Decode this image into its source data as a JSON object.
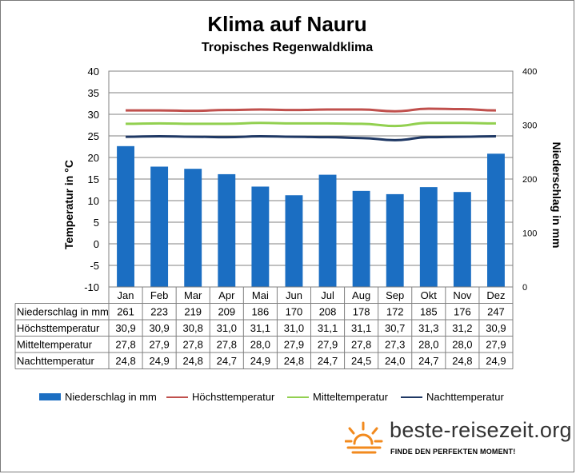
{
  "chart_data": {
    "type": "bar",
    "title": "Klima auf Nauru",
    "subtitle": "Tropisches Regenwaldklima",
    "ylabel_left": "Temperatur in °C",
    "ylabel_right": "Niederschlag in mm",
    "ylim_left": [
      -10,
      40
    ],
    "ylim_right": [
      0,
      400
    ],
    "yticks_left": [
      "-10",
      "-5",
      "0",
      "5",
      "10",
      "15",
      "20",
      "25",
      "30",
      "35",
      "40"
    ],
    "yticks_right": [
      "0",
      "100",
      "200",
      "300",
      "400"
    ],
    "categories": [
      "Jan",
      "Feb",
      "Mar",
      "Apr",
      "Mai",
      "Jun",
      "Jul",
      "Aug",
      "Sep",
      "Okt",
      "Nov",
      "Dez"
    ],
    "series": [
      {
        "name": "Niederschlag in mm",
        "kind": "bar",
        "axis": "right",
        "color": "#1b6ec2",
        "values": [
          261,
          223,
          219,
          209,
          186,
          170,
          208,
          178,
          172,
          185,
          176,
          247
        ],
        "labels": [
          "261",
          "223",
          "219",
          "209",
          "186",
          "170",
          "208",
          "178",
          "172",
          "185",
          "176",
          "247"
        ]
      },
      {
        "name": "Höchsttemperatur",
        "kind": "line",
        "axis": "left",
        "color": "#c0504d",
        "values": [
          30.9,
          30.9,
          30.8,
          31.0,
          31.1,
          31.0,
          31.1,
          31.1,
          30.7,
          31.3,
          31.2,
          30.9
        ],
        "labels": [
          "30,9",
          "30,9",
          "30,8",
          "31,0",
          "31,1",
          "31,0",
          "31,1",
          "31,1",
          "30,7",
          "31,3",
          "31,2",
          "30,9"
        ]
      },
      {
        "name": "Mitteltemperatur",
        "kind": "line",
        "axis": "left",
        "color": "#92d050",
        "values": [
          27.8,
          27.9,
          27.8,
          27.8,
          28.0,
          27.9,
          27.9,
          27.8,
          27.3,
          28.0,
          28.0,
          27.9
        ],
        "labels": [
          "27,8",
          "27,9",
          "27,8",
          "27,8",
          "28,0",
          "27,9",
          "27,9",
          "27,8",
          "27,3",
          "28,0",
          "28,0",
          "27,9"
        ]
      },
      {
        "name": "Nachttemperatur",
        "kind": "line",
        "axis": "left",
        "color": "#1f3864",
        "values": [
          24.8,
          24.9,
          24.8,
          24.7,
          24.9,
          24.8,
          24.7,
          24.5,
          24.0,
          24.7,
          24.8,
          24.9
        ],
        "labels": [
          "24,8",
          "24,9",
          "24,8",
          "24,7",
          "24,9",
          "24,8",
          "24,7",
          "24,5",
          "24,0",
          "24,7",
          "24,8",
          "24,9"
        ]
      }
    ],
    "grid": true,
    "legend_position": "bottom"
  },
  "branding": {
    "site": "beste-reisezeit.org",
    "tagline": "FINDE DEN PERFEKTEN MOMENT!",
    "sun_color": "#f28a1e"
  }
}
